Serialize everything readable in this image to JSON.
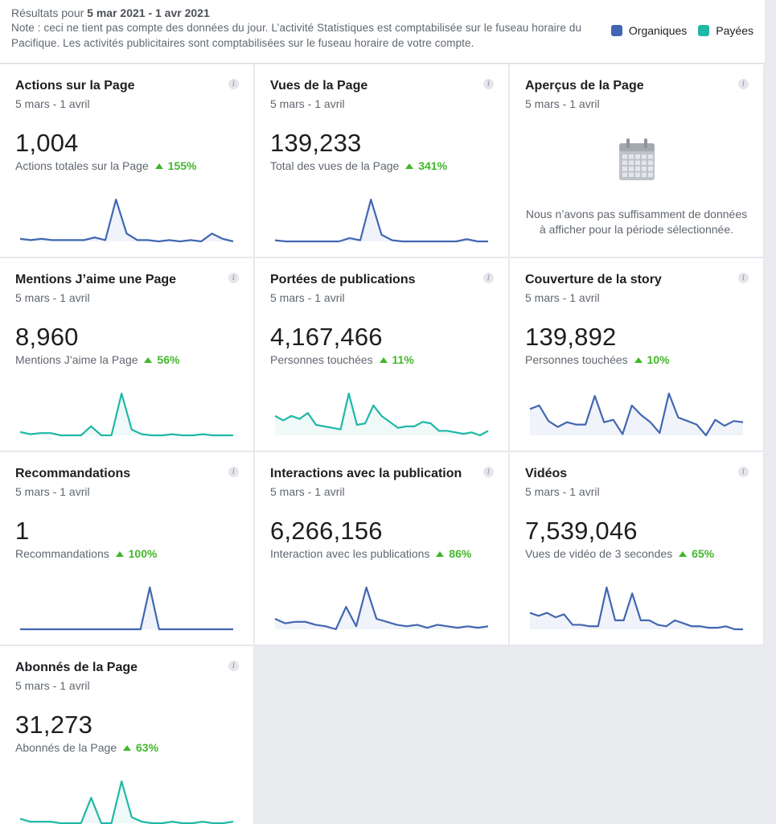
{
  "header": {
    "results_prefix": "Résultats pour",
    "date_range": "5 mar 2021 - 1 avr 2021",
    "note": "Note : ceci ne tient pas compte des données du jour. L’activité Statistiques est comptabilisée sur le fuseau horaire du Pacifique. Les activités publicitaires sont comptabilisées sur le fuseau horaire de votre compte.",
    "legend": [
      {
        "label": "Organiques",
        "color": "#4267b2"
      },
      {
        "label": "Payées",
        "color": "#20b8a6"
      }
    ]
  },
  "colors": {
    "organic": "#4267b2",
    "paid": "#20b8a6",
    "positive": "#42b72a"
  },
  "cards": [
    {
      "title": "Actions sur la Page",
      "period": "5 mars - 1 avril",
      "value": "1,004",
      "sub_label": "Actions totales sur la Page",
      "change": "155%",
      "series": "organic",
      "spark": [
        3,
        2,
        3,
        2,
        2,
        2,
        2,
        4,
        2,
        33,
        7,
        2,
        2,
        1,
        2,
        1,
        2,
        1,
        7,
        3,
        1
      ]
    },
    {
      "title": "Vues de la Page",
      "period": "5 mars - 1 avril",
      "value": "139,233",
      "sub_label": "Total des vues de la Page",
      "change": "341%",
      "series": "organic",
      "spark": [
        2,
        1,
        1,
        1,
        1,
        1,
        1,
        4,
        2,
        39,
        7,
        2,
        1,
        1,
        1,
        1,
        1,
        1,
        3,
        1,
        1
      ]
    },
    {
      "title": "Aperçus de la Page",
      "period": "5 mars - 1 avril",
      "empty_message": "Nous n’avons pas suffisamment de données à afficher pour la période sélectionnée.",
      "icon": "calendar-icon"
    },
    {
      "title": "Mentions J’aime une Page",
      "period": "5 mars - 1 avril",
      "value": "8,960",
      "sub_label": "Mentions J’aime la Page",
      "change": "56%",
      "series": "paid",
      "spark": [
        4,
        2,
        3,
        3,
        1,
        1,
        1,
        9,
        1,
        1,
        38,
        6,
        2,
        1,
        1,
        2,
        1,
        1,
        2,
        1,
        1,
        1
      ]
    },
    {
      "title": "Portées de publications",
      "period": "5 mars - 1 avril",
      "value": "4,167,466",
      "sub_label": "Personnes touchées",
      "change": "11%",
      "series": "paid",
      "spark": [
        18,
        15,
        18,
        16,
        20,
        12,
        11,
        10,
        9,
        33,
        12,
        13,
        25,
        18,
        14,
        10,
        11,
        11,
        14,
        13,
        8,
        8,
        7,
        6,
        7,
        5,
        8
      ]
    },
    {
      "title": "Couverture de la story",
      "period": "5 mars - 1 avril",
      "value": "139,892",
      "sub_label": "Personnes touchées",
      "change": "10%",
      "series": "organic",
      "spark": [
        25,
        28,
        15,
        10,
        14,
        12,
        12,
        36,
        14,
        16,
        4,
        28,
        20,
        14,
        5,
        38,
        18,
        15,
        12,
        3,
        16,
        11,
        15,
        14
      ]
    },
    {
      "title": "Recommandations",
      "period": "5 mars - 1 avril",
      "value": "1",
      "sub_label": "Recommandations",
      "change": "100%",
      "series": "organic",
      "spark": [
        0,
        0,
        0,
        0,
        0,
        0,
        0,
        0,
        0,
        0,
        0,
        0,
        0,
        0,
        1,
        0,
        0,
        0,
        0,
        0,
        0,
        0,
        0,
        0
      ]
    },
    {
      "title": "Interactions avec la publication",
      "period": "5 mars - 1 avril",
      "value": "6,266,156",
      "sub_label": "Interaction avec les publications",
      "change": "86%",
      "series": "organic",
      "spark": [
        8,
        5,
        6,
        6,
        4,
        3,
        1,
        16,
        3,
        29,
        8,
        6,
        4,
        3,
        4,
        2,
        4,
        3,
        2,
        3,
        2,
        3
      ]
    },
    {
      "title": "Vidéos",
      "period": "5 mars - 1 avril",
      "value": "7,539,046",
      "sub_label": "Vues de vidéo de 3 secondes",
      "change": "65%",
      "series": "organic",
      "spark": [
        13,
        11,
        13,
        10,
        12,
        5,
        5,
        4,
        4,
        30,
        8,
        8,
        26,
        8,
        8,
        5,
        4,
        8,
        6,
        4,
        4,
        3,
        3,
        4,
        2,
        2
      ]
    },
    {
      "title": "Abonnés de la Page",
      "period": "5 mars - 1 avril",
      "value": "31,273",
      "sub_label": "Abonnés de la Page",
      "change": "63%",
      "series": "paid",
      "spark": [
        5,
        3,
        3,
        3,
        2,
        2,
        2,
        19,
        2,
        2,
        30,
        6,
        3,
        2,
        2,
        3,
        2,
        2,
        3,
        2,
        2,
        3
      ]
    }
  ]
}
